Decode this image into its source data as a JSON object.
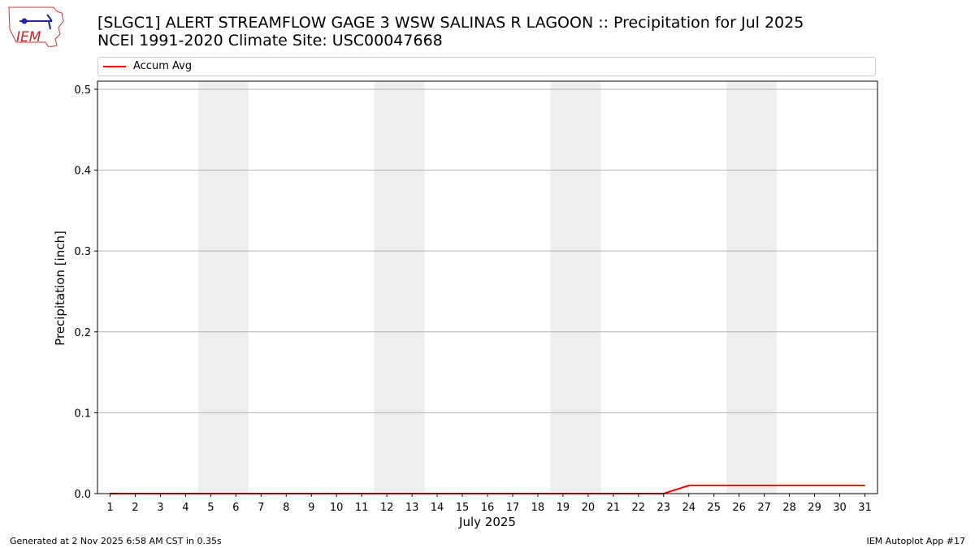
{
  "header": {
    "title_line1": "[SLGC1] ALERT STREAMFLOW GAGE 3 WSW SALINAS R LAGOON :: Precipitation for Jul 2025",
    "title_line2": "NCEI 1991-2020 Climate Site: USC00047668"
  },
  "logo": {
    "text": "IEM",
    "icon": "iem-logo"
  },
  "footer": {
    "left": "Generated at 2 Nov 2025 6:58 AM CST in 0.35s",
    "right": "IEM Autoplot App #17"
  },
  "chart_data": {
    "type": "line",
    "xlabel": "July 2025",
    "ylabel": "Precipitation [inch]",
    "ylim": [
      0,
      0.51
    ],
    "yticks": [
      0.0,
      0.1,
      0.2,
      0.3,
      0.4,
      0.5
    ],
    "ytick_labels": [
      "0.0",
      "0.1",
      "0.2",
      "0.3",
      "0.4",
      "0.5"
    ],
    "grid": "horizontal",
    "legend_placement": "top, spanning plot width",
    "x": [
      1,
      2,
      3,
      4,
      5,
      6,
      7,
      8,
      9,
      10,
      11,
      12,
      13,
      14,
      15,
      16,
      17,
      18,
      19,
      20,
      21,
      22,
      23,
      24,
      25,
      26,
      27,
      28,
      29,
      30,
      31
    ],
    "xtick_labels": [
      "1",
      "2",
      "3",
      "4",
      "5",
      "6",
      "7",
      "8",
      "9",
      "10",
      "11",
      "12",
      "13",
      "14",
      "15",
      "16",
      "17",
      "18",
      "19",
      "20",
      "21",
      "22",
      "23",
      "24",
      "25",
      "26",
      "27",
      "28",
      "29",
      "30",
      "31"
    ],
    "weekend_bands": [
      [
        5,
        6
      ],
      [
        12,
        13
      ],
      [
        19,
        20
      ],
      [
        26,
        27
      ]
    ],
    "series": [
      {
        "name": "Accum Avg",
        "color": "#ff0000",
        "values": [
          0,
          0,
          0,
          0,
          0,
          0,
          0,
          0,
          0,
          0,
          0,
          0,
          0,
          0,
          0,
          0,
          0,
          0,
          0,
          0,
          0,
          0,
          0,
          0.01,
          0.01,
          0.01,
          0.01,
          0.01,
          0.01,
          0.01,
          0.01
        ]
      }
    ],
    "band_color": "#eeeeee",
    "grid_color": "#b0b0b0"
  }
}
